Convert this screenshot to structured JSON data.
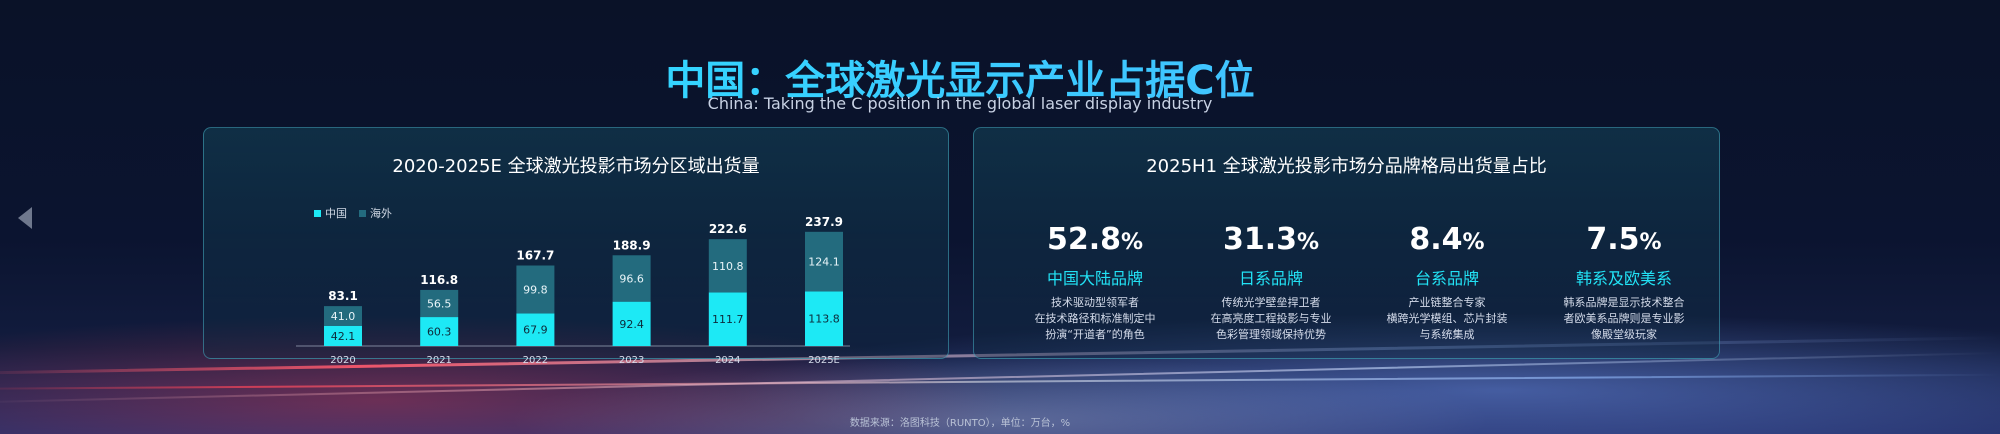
{
  "title": "中国：全球激光显示产业占据C位",
  "subtitle": "China: Taking the C position in the global laser display industry",
  "left_panel": {
    "title": "2020-2025E 全球激光投影市场分区域出货量"
  },
  "right_panel": {
    "title": "2025H1 全球激光投影市场分品牌格局出货量占比",
    "brands": [
      {
        "value": "52.8",
        "unit": "%",
        "name": "中国大陆品牌",
        "desc": [
          "技术驱动型领军者",
          "在技术路径和标准制定中",
          "扮演“开道者”的角色"
        ]
      },
      {
        "value": "31.3",
        "unit": "%",
        "name": "日系品牌",
        "desc": [
          "传统光学壁垒捍卫者",
          "在高亮度工程投影与专业",
          "色彩管理领域保持优势"
        ]
      },
      {
        "value": "8.4",
        "unit": "%",
        "name": "台系品牌",
        "desc": [
          "产业链整合专家",
          "横跨光学模组、芯片封装",
          "与系统集成"
        ]
      },
      {
        "value": "7.5",
        "unit": "%",
        "name": "韩系及欧美系",
        "desc": [
          "韩系品牌是显示技术整合",
          "者欧美系品牌则是专业影",
          "像殿堂级玩家"
        ]
      }
    ]
  },
  "footer": "数据来源：洛图科技（RUNTO），单位：万台，%",
  "colors": {
    "china": "#1de9f5",
    "overseas": "#236b7e",
    "accent": "#22e2f5"
  },
  "chart_data": {
    "type": "bar",
    "stacked": true,
    "categories": [
      "2020",
      "2021",
      "2022",
      "2023",
      "2024",
      "2025E"
    ],
    "series": [
      {
        "name": "中国",
        "values": [
          42.1,
          60.3,
          67.9,
          92.4,
          111.7,
          113.8
        ]
      },
      {
        "name": "海外",
        "values": [
          41.0,
          56.5,
          99.8,
          96.6,
          110.8,
          124.1
        ]
      }
    ],
    "totals": [
      83.1,
      116.8,
      167.7,
      188.9,
      222.6,
      237.9
    ],
    "legend": "top-left"
  }
}
